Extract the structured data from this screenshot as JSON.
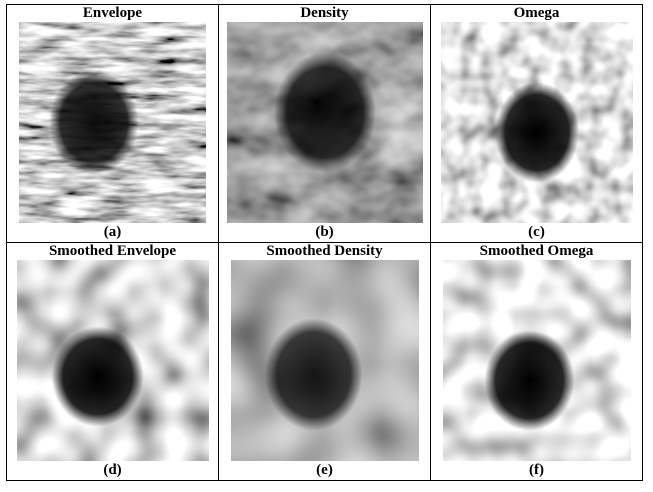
{
  "panels": [
    {
      "title": "Envelope",
      "caption": "(a)"
    },
    {
      "title": "Density",
      "caption": "(b)"
    },
    {
      "title": "Omega",
      "caption": "(c)"
    },
    {
      "title": "Smoothed Envelope",
      "caption": "(d)"
    },
    {
      "title": "Smoothed Density",
      "caption": "(e)"
    },
    {
      "title": "Smoothed Omega",
      "caption": "(f)"
    }
  ]
}
